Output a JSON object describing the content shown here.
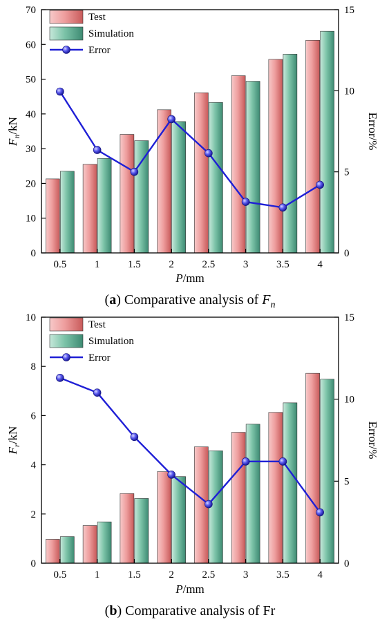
{
  "chart_data": [
    {
      "type": "bar",
      "categories": [
        "0.5",
        "1",
        "1.5",
        "2",
        "2.5",
        "3",
        "3.5",
        "4"
      ],
      "series": [
        {
          "name": "Test",
          "kind": "bar",
          "axis": "left",
          "color": "#e88a8a",
          "values": [
            21.3,
            25.5,
            34.1,
            41.2,
            46.1,
            51.0,
            55.7,
            61.2
          ]
        },
        {
          "name": "Simulation",
          "kind": "bar",
          "axis": "left",
          "color": "#5fae96",
          "values": [
            23.5,
            27.2,
            32.3,
            37.8,
            43.3,
            49.4,
            57.2,
            63.8
          ]
        },
        {
          "name": "Error",
          "kind": "line",
          "axis": "right",
          "color": "#1f1fd6",
          "values": [
            9.95,
            6.35,
            5.0,
            8.25,
            6.15,
            3.15,
            2.8,
            4.2
          ]
        }
      ],
      "xlabel_italic": "P",
      "xlabel_unit": "/mm",
      "ylabel_italic": "F",
      "ylabel_sub": "n",
      "ylabel_unit": "/kN",
      "ylabel_right": "Error/%",
      "ylim": [
        0,
        70
      ],
      "yticks": [
        "0",
        "10",
        "20",
        "30",
        "40",
        "50",
        "60",
        "70"
      ],
      "ylim_right": [
        0,
        15
      ],
      "yticks_right": [
        "0",
        "5",
        "10",
        "15"
      ],
      "legend_position": "top-left",
      "grid": false,
      "caption_letter": "a",
      "caption_text": "Comparative analysis of ",
      "caption_italic": "F",
      "caption_sub": "n"
    },
    {
      "type": "bar",
      "categories": [
        "0.5",
        "1",
        "1.5",
        "2",
        "2.5",
        "3",
        "3.5",
        "4"
      ],
      "series": [
        {
          "name": "Test",
          "kind": "bar",
          "axis": "left",
          "color": "#e88a8a",
          "values": [
            0.97,
            1.53,
            2.83,
            3.72,
            4.73,
            5.32,
            6.13,
            7.72
          ]
        },
        {
          "name": "Simulation",
          "kind": "bar",
          "axis": "left",
          "color": "#5fae96",
          "values": [
            1.08,
            1.68,
            2.63,
            3.52,
            4.57,
            5.65,
            6.52,
            7.48
          ]
        },
        {
          "name": "Error",
          "kind": "line",
          "axis": "right",
          "color": "#1f1fd6",
          "values": [
            11.3,
            10.4,
            7.7,
            5.4,
            3.6,
            6.2,
            6.2,
            3.1
          ]
        }
      ],
      "xlabel_italic": "P",
      "xlabel_unit": "/mm",
      "ylabel_italic": "F",
      "ylabel_sub": "r",
      "ylabel_unit": "/kN",
      "ylabel_right": "Error/%",
      "ylim": [
        0,
        10
      ],
      "yticks": [
        "0",
        "2",
        "4",
        "6",
        "8",
        "10"
      ],
      "ylim_right": [
        0,
        15
      ],
      "yticks_right": [
        "0",
        "5",
        "10",
        "15"
      ],
      "legend_position": "top-left",
      "grid": false,
      "caption_letter": "b",
      "caption_text": "Comparative analysis of Fr",
      "caption_italic": "",
      "caption_sub": ""
    }
  ]
}
